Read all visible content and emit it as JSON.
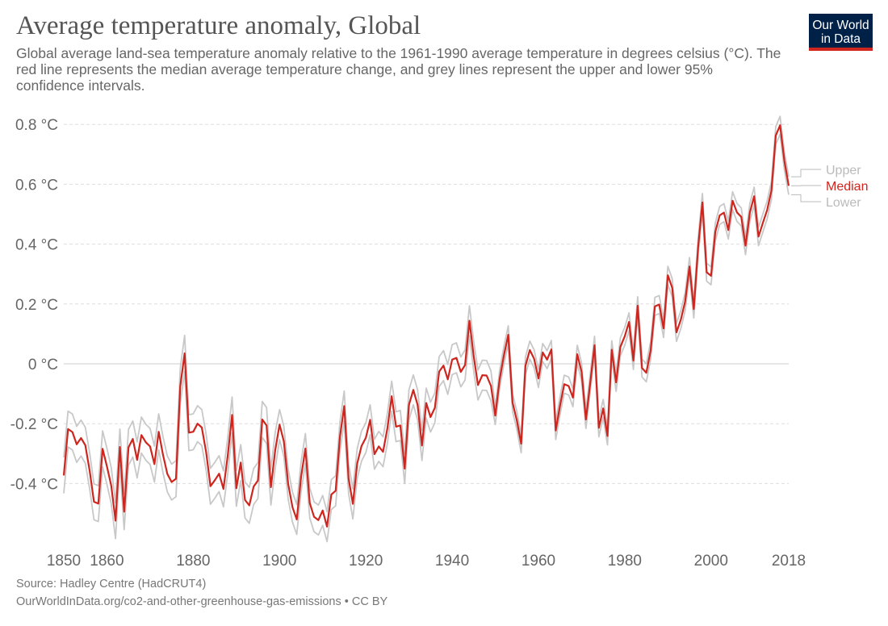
{
  "header": {
    "title": "Average temperature anomaly, Global",
    "subtitle": "Global average land-sea temperature anomaly relative to the 1961-1990 average temperature in degrees celsius (°C). The red line represents the median average temperature change, and grey lines represent the upper and lower 95% confidence intervals.",
    "logo": "Our World in Data"
  },
  "footer": {
    "source": "Source: Hadley Centre (HadCRUT4)",
    "url": "OurWorldInData.org/co2-and-other-greenhouse-gas-emissions • CC BY"
  },
  "colors": {
    "median": "#ce261e",
    "bounds": "#c8c8c8",
    "grid": "#dddddd",
    "logo_bg": "#002147"
  },
  "chart_data": {
    "type": "line",
    "title": "Average temperature anomaly, Global",
    "xlim": [
      1850,
      2018
    ],
    "ylim": [
      -0.6,
      0.85
    ],
    "grid": true,
    "legend": "right, inline labels at line ends",
    "x_ticks": [
      1850,
      1860,
      1880,
      1900,
      1920,
      1940,
      1960,
      1980,
      2000,
      2018
    ],
    "y_ticks": [
      0.8,
      0.6,
      0.4,
      0.2,
      0,
      -0.2,
      -0.4
    ],
    "y_tick_labels": [
      "0.8 °C",
      "0.6 °C",
      "0.4 °C",
      "0.2 °C",
      "0 °C",
      "-0.2 °C",
      "-0.4 °C"
    ],
    "x_start": 1850,
    "series": [
      {
        "name": "Upper",
        "color": "#c8c8c8",
        "values": [
          -0.313,
          -0.158,
          -0.168,
          -0.209,
          -0.188,
          -0.212,
          -0.298,
          -0.401,
          -0.407,
          -0.224,
          -0.283,
          -0.347,
          -0.464,
          -0.218,
          -0.434,
          -0.219,
          -0.191,
          -0.261,
          -0.178,
          -0.202,
          -0.216,
          -0.275,
          -0.167,
          -0.244,
          -0.308,
          -0.335,
          -0.324,
          -0.015,
          0.095,
          -0.17,
          -0.167,
          -0.14,
          -0.153,
          -0.236,
          -0.349,
          -0.329,
          -0.307,
          -0.358,
          -0.247,
          -0.111,
          -0.356,
          -0.27,
          -0.395,
          -0.413,
          -0.35,
          -0.33,
          -0.126,
          -0.146,
          -0.352,
          -0.229,
          -0.153,
          -0.209,
          -0.352,
          -0.429,
          -0.47,
          -0.327,
          -0.233,
          -0.415,
          -0.461,
          -0.472,
          -0.44,
          -0.494,
          -0.387,
          -0.374,
          -0.194,
          -0.091,
          -0.333,
          -0.418,
          -0.283,
          -0.225,
          -0.197,
          -0.137,
          -0.252,
          -0.226,
          -0.244,
          -0.165,
          -0.058,
          -0.16,
          -0.156,
          -0.3,
          -0.087,
          -0.037,
          -0.087,
          -0.223,
          -0.081,
          -0.128,
          -0.097,
          0.024,
          0.044,
          -0.002,
          0.064,
          0.07,
          0.023,
          0.046,
          0.194,
          0.075,
          -0.021,
          0.012,
          0.011,
          -0.024,
          -0.143,
          -0.022,
          0.058,
          0.127,
          -0.099,
          -0.16,
          -0.237,
          0.023,
          0.076,
          0.047,
          -0.019,
          0.068,
          0.044,
          0.078,
          -0.193,
          -0.11,
          -0.038,
          -0.044,
          -0.083,
          0.062,
          0.003,
          -0.156,
          -0.035,
          0.092,
          -0.184,
          -0.119,
          -0.211,
          0.077,
          -0.032,
          0.087,
          0.122,
          0.17,
          0.041,
          0.224,
          0.016,
          0.0,
          0.075,
          0.222,
          0.228,
          0.148,
          0.326,
          0.284,
          0.135,
          0.178,
          0.238,
          0.355,
          0.213,
          0.42,
          0.569,
          0.336,
          0.324,
          0.471,
          0.526,
          0.535,
          0.477,
          0.575,
          0.536,
          0.521,
          0.425,
          0.536,
          0.59,
          0.455,
          0.5,
          0.544,
          0.609,
          0.793,
          0.827,
          0.707,
          0.625
        ]
      },
      {
        "name": "Median",
        "color": "#ce261e",
        "values": [
          -0.373,
          -0.218,
          -0.228,
          -0.269,
          -0.248,
          -0.272,
          -0.358,
          -0.461,
          -0.467,
          -0.284,
          -0.343,
          -0.407,
          -0.524,
          -0.278,
          -0.494,
          -0.279,
          -0.251,
          -0.321,
          -0.238,
          -0.262,
          -0.276,
          -0.335,
          -0.227,
          -0.304,
          -0.368,
          -0.395,
          -0.384,
          -0.075,
          0.035,
          -0.23,
          -0.227,
          -0.2,
          -0.213,
          -0.296,
          -0.409,
          -0.389,
          -0.367,
          -0.418,
          -0.307,
          -0.171,
          -0.416,
          -0.33,
          -0.455,
          -0.473,
          -0.41,
          -0.39,
          -0.186,
          -0.206,
          -0.412,
          -0.289,
          -0.203,
          -0.259,
          -0.402,
          -0.479,
          -0.52,
          -0.377,
          -0.283,
          -0.465,
          -0.511,
          -0.522,
          -0.49,
          -0.544,
          -0.437,
          -0.424,
          -0.244,
          -0.141,
          -0.383,
          -0.468,
          -0.333,
          -0.275,
          -0.247,
          -0.187,
          -0.302,
          -0.276,
          -0.294,
          -0.215,
          -0.108,
          -0.21,
          -0.206,
          -0.35,
          -0.137,
          -0.087,
          -0.137,
          -0.273,
          -0.131,
          -0.178,
          -0.147,
          -0.026,
          -0.006,
          -0.052,
          0.014,
          0.02,
          -0.027,
          -0.004,
          0.144,
          0.025,
          -0.071,
          -0.038,
          -0.039,
          -0.074,
          -0.173,
          -0.052,
          0.028,
          0.097,
          -0.129,
          -0.19,
          -0.267,
          -0.007,
          0.046,
          0.017,
          -0.049,
          0.038,
          0.014,
          0.048,
          -0.223,
          -0.14,
          -0.068,
          -0.074,
          -0.113,
          0.032,
          -0.027,
          -0.186,
          -0.065,
          0.062,
          -0.214,
          -0.149,
          -0.241,
          0.047,
          -0.062,
          0.057,
          0.092,
          0.14,
          0.011,
          0.194,
          -0.014,
          -0.03,
          0.045,
          0.192,
          0.198,
          0.118,
          0.296,
          0.254,
          0.105,
          0.148,
          0.208,
          0.325,
          0.183,
          0.39,
          0.539,
          0.306,
          0.294,
          0.441,
          0.496,
          0.505,
          0.447,
          0.545,
          0.506,
          0.491,
          0.395,
          0.506,
          0.56,
          0.425,
          0.47,
          0.514,
          0.579,
          0.763,
          0.797,
          0.677,
          0.595
        ]
      },
      {
        "name": "Lower",
        "color": "#c8c8c8",
        "values": [
          -0.433,
          -0.278,
          -0.288,
          -0.329,
          -0.308,
          -0.332,
          -0.418,
          -0.521,
          -0.527,
          -0.344,
          -0.403,
          -0.467,
          -0.584,
          -0.338,
          -0.554,
          -0.339,
          -0.311,
          -0.381,
          -0.298,
          -0.322,
          -0.336,
          -0.395,
          -0.287,
          -0.364,
          -0.428,
          -0.455,
          -0.444,
          -0.135,
          -0.025,
          -0.29,
          -0.287,
          -0.26,
          -0.273,
          -0.356,
          -0.469,
          -0.449,
          -0.427,
          -0.478,
          -0.367,
          -0.231,
          -0.476,
          -0.39,
          -0.515,
          -0.533,
          -0.47,
          -0.45,
          -0.246,
          -0.266,
          -0.472,
          -0.349,
          -0.253,
          -0.309,
          -0.452,
          -0.529,
          -0.57,
          -0.427,
          -0.333,
          -0.515,
          -0.561,
          -0.572,
          -0.54,
          -0.594,
          -0.487,
          -0.474,
          -0.294,
          -0.191,
          -0.433,
          -0.518,
          -0.383,
          -0.325,
          -0.297,
          -0.237,
          -0.352,
          -0.326,
          -0.344,
          -0.265,
          -0.158,
          -0.26,
          -0.256,
          -0.4,
          -0.187,
          -0.137,
          -0.187,
          -0.323,
          -0.181,
          -0.228,
          -0.197,
          -0.076,
          -0.056,
          -0.102,
          -0.036,
          -0.03,
          -0.077,
          -0.054,
          0.094,
          -0.025,
          -0.121,
          -0.088,
          -0.089,
          -0.124,
          -0.203,
          -0.082,
          -0.002,
          0.067,
          -0.159,
          -0.22,
          -0.297,
          -0.037,
          0.016,
          -0.013,
          -0.079,
          0.008,
          -0.016,
          0.018,
          -0.253,
          -0.17,
          -0.098,
          -0.104,
          -0.143,
          0.002,
          -0.057,
          -0.216,
          -0.095,
          0.032,
          -0.244,
          -0.179,
          -0.271,
          0.017,
          -0.092,
          0.027,
          0.062,
          0.11,
          -0.019,
          0.164,
          -0.044,
          -0.06,
          0.015,
          0.162,
          0.168,
          0.088,
          0.266,
          0.224,
          0.075,
          0.118,
          0.178,
          0.295,
          0.153,
          0.36,
          0.509,
          0.276,
          0.264,
          0.411,
          0.466,
          0.475,
          0.417,
          0.515,
          0.476,
          0.461,
          0.365,
          0.476,
          0.53,
          0.395,
          0.44,
          0.484,
          0.549,
          0.733,
          0.767,
          0.647,
          0.565
        ]
      }
    ]
  }
}
